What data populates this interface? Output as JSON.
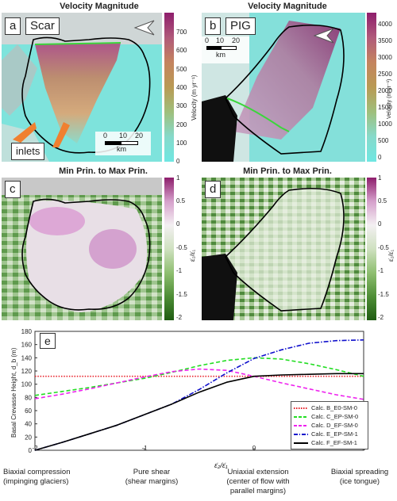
{
  "panels": {
    "a": {
      "title": "Velocity Magnitude",
      "label": "a",
      "name": "Scar",
      "inlets": "inlets",
      "scale": {
        "ticks": [
          "0",
          "10",
          "20"
        ],
        "unit": "km"
      },
      "cbar": {
        "ticks": [
          "700",
          "600",
          "500",
          "400",
          "300",
          "200",
          "100",
          "0"
        ],
        "label": "Velocity (m yr⁻¹)"
      }
    },
    "b": {
      "title": "Velocity Magnitude",
      "label": "b",
      "name": "PIG",
      "scale": {
        "ticks": [
          "0",
          "10",
          "20"
        ],
        "unit": "km"
      },
      "cbar": {
        "ticks": [
          "4000",
          "3500",
          "3000",
          "2500",
          "2000",
          "1500",
          "1000",
          "500",
          "0"
        ],
        "label": "Velocity (m yr⁻¹)"
      }
    },
    "c": {
      "title": "Min Prin. to Max Prin.",
      "label": "c",
      "cbar": {
        "ticks": [
          "1",
          "0.5",
          "0",
          "-0.5",
          "-1",
          "-1.5",
          "-2"
        ],
        "label": "ε̇₂/ε̇₁"
      }
    },
    "d": {
      "title": "Min Prin. to Max Prin.",
      "label": "d",
      "cbar": {
        "ticks": [
          "1",
          "0.5",
          "0",
          "-0.5",
          "-1",
          "-1.5",
          "-2"
        ],
        "label": "ε̇₂/ε̇₁"
      }
    }
  },
  "chart_data": {
    "type": "line",
    "panel_label": "e",
    "ylabel": "Basal Crevasse Height, d_b (m)",
    "xlabel": "ε̇₂/ε̇₁",
    "xlim": [
      -2,
      1
    ],
    "ylim": [
      0,
      180
    ],
    "x_ticks": [
      "-2",
      "-1",
      "0",
      "1"
    ],
    "y_ticks": [
      "0",
      "20",
      "40",
      "60",
      "80",
      "100",
      "120",
      "140",
      "160",
      "180"
    ],
    "x": [
      -2,
      -1.75,
      -1.5,
      -1.25,
      -1,
      -0.75,
      -0.5,
      -0.25,
      0,
      0.25,
      0.5,
      0.75,
      1
    ],
    "series": [
      {
        "name": "Calc. B_E0-SM-0",
        "color": "#e8202a",
        "dash": "dot",
        "values": [
          112,
          112,
          112,
          112,
          112,
          112,
          112,
          112,
          112,
          112,
          112,
          112,
          112
        ]
      },
      {
        "name": "Calc. C_EP-SM-0",
        "color": "#22dd22",
        "dash": "dash",
        "values": [
          83,
          89,
          95,
          102,
          109,
          118,
          128,
          136,
          140,
          138,
          131,
          122,
          112
        ]
      },
      {
        "name": "Calc. D_EF-SM-0",
        "color": "#ee22ee",
        "dash": "dash",
        "values": [
          78,
          85,
          93,
          102,
          111,
          119,
          123,
          121,
          112,
          102,
          93,
          84,
          77
        ]
      },
      {
        "name": "Calc. E_EP-SM-1",
        "color": "#1010cc",
        "dash": "dashdot",
        "values": [
          0,
          12,
          25,
          38,
          54,
          70,
          92,
          117,
          139,
          152,
          162,
          166,
          167
        ]
      },
      {
        "name": "Calc. F_EF-SM-1",
        "color": "#000000",
        "dash": "solid",
        "values": [
          0,
          12,
          25,
          38,
          54,
          70,
          88,
          103,
          112,
          114,
          115,
          116,
          116
        ]
      }
    ],
    "categories": [
      {
        "title": "Biaxial compression",
        "sub": "(impinging glaciers)"
      },
      {
        "title": "Pure shear",
        "sub": "(shear margins)"
      },
      {
        "title": "Uniaxial extension",
        "sub": "(center of flow with parallel margins)"
      },
      {
        "title": "Biaxial spreading",
        "sub": "(ice tongue)"
      }
    ]
  }
}
